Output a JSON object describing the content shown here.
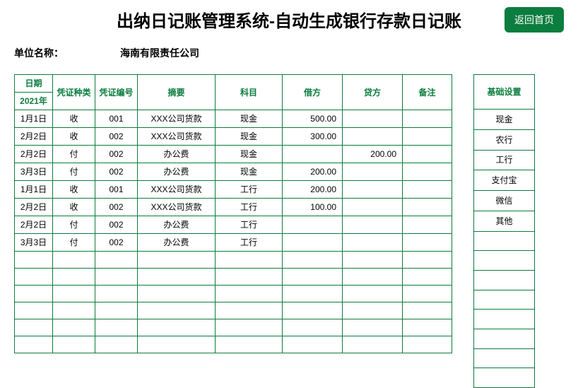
{
  "title": "出纳日记账管理系统-自动生成银行存款日记账",
  "back_button": "返回首页",
  "company_label": "单位名称：",
  "company_name": "海南有限责任公司",
  "main_table": {
    "date_header_top": "日期",
    "date_header_bottom": "2021年",
    "headers": [
      "凭证种类",
      "凭证编号",
      "摘要",
      "科目",
      "借方",
      "贷方",
      "备注"
    ],
    "rows": [
      {
        "date": "1月1日",
        "vtype": "收",
        "vno": "001",
        "summary": "XXX公司货款",
        "subject": "现金",
        "debit": "500.00",
        "credit": "",
        "remark": ""
      },
      {
        "date": "2月2日",
        "vtype": "收",
        "vno": "002",
        "summary": "XXX公司货款",
        "subject": "现金",
        "debit": "300.00",
        "credit": "",
        "remark": ""
      },
      {
        "date": "2月2日",
        "vtype": "付",
        "vno": "002",
        "summary": "办公费",
        "subject": "现金",
        "debit": "",
        "credit": "200.00",
        "remark": ""
      },
      {
        "date": "3月3日",
        "vtype": "付",
        "vno": "002",
        "summary": "办公费",
        "subject": "现金",
        "debit": "200.00",
        "credit": "",
        "remark": ""
      },
      {
        "date": "1月1日",
        "vtype": "收",
        "vno": "001",
        "summary": "XXX公司货款",
        "subject": "工行",
        "debit": "200.00",
        "credit": "",
        "remark": ""
      },
      {
        "date": "2月2日",
        "vtype": "收",
        "vno": "002",
        "summary": "XXX公司货款",
        "subject": "工行",
        "debit": "100.00",
        "credit": "",
        "remark": ""
      },
      {
        "date": "2月2日",
        "vtype": "付",
        "vno": "002",
        "summary": "办公费",
        "subject": "工行",
        "debit": "",
        "credit": "",
        "remark": ""
      },
      {
        "date": "3月3日",
        "vtype": "付",
        "vno": "002",
        "summary": "办公费",
        "subject": "工行",
        "debit": "",
        "credit": "",
        "remark": ""
      },
      {
        "date": "",
        "vtype": "",
        "vno": "",
        "summary": "",
        "subject": "",
        "debit": "",
        "credit": "",
        "remark": ""
      },
      {
        "date": "",
        "vtype": "",
        "vno": "",
        "summary": "",
        "subject": "",
        "debit": "",
        "credit": "",
        "remark": ""
      },
      {
        "date": "",
        "vtype": "",
        "vno": "",
        "summary": "",
        "subject": "",
        "debit": "",
        "credit": "",
        "remark": ""
      },
      {
        "date": "",
        "vtype": "",
        "vno": "",
        "summary": "",
        "subject": "",
        "debit": "",
        "credit": "",
        "remark": ""
      },
      {
        "date": "",
        "vtype": "",
        "vno": "",
        "summary": "",
        "subject": "",
        "debit": "",
        "credit": "",
        "remark": ""
      },
      {
        "date": "",
        "vtype": "",
        "vno": "",
        "summary": "",
        "subject": "",
        "debit": "",
        "credit": "",
        "remark": ""
      }
    ]
  },
  "side_table": {
    "header": "基础设置",
    "rows": [
      "现金",
      "农行",
      "工行",
      "支付宝",
      "微信",
      "其他",
      "",
      "",
      "",
      "",
      "",
      "",
      "",
      ""
    ]
  }
}
